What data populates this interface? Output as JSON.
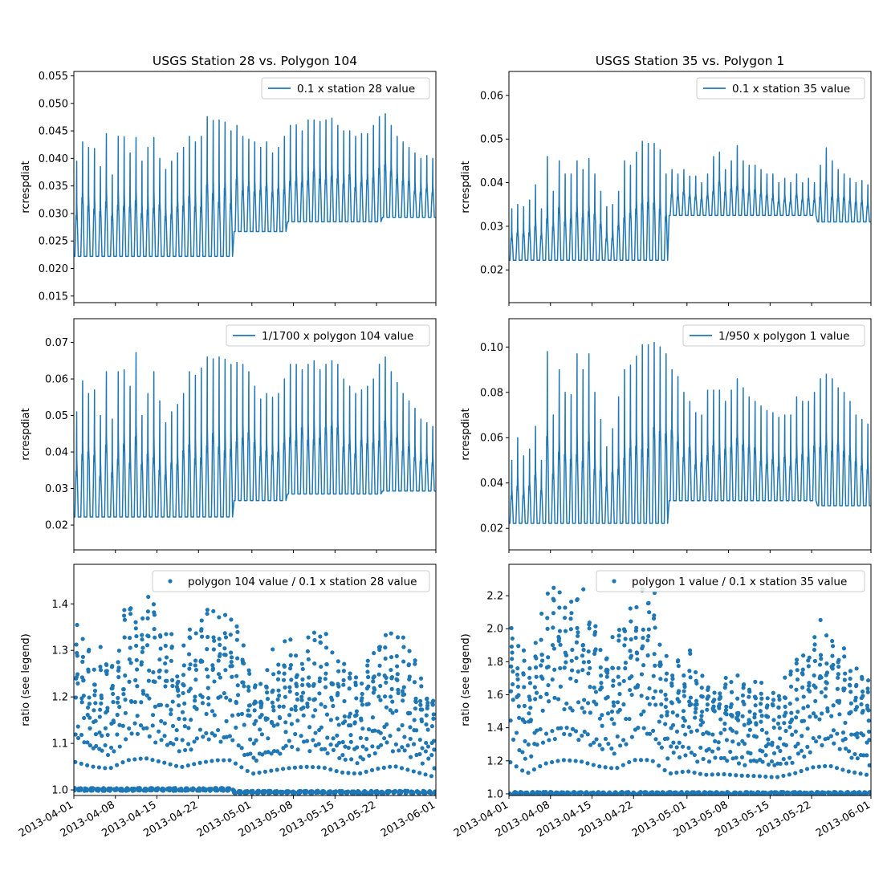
{
  "chart_data": [
    {
      "type": "line",
      "panel": "top-left",
      "title": "USGS Station 28 vs. Polygon 104",
      "ylabel": "rcrespdiat",
      "xlim": [
        "2013-04-01",
        "2013-06-01"
      ],
      "ylim": [
        0.0138,
        0.0558
      ],
      "yticks": [
        0.015,
        0.02,
        0.025,
        0.03,
        0.035,
        0.04,
        0.045,
        0.05,
        0.055
      ],
      "ytick_labels": [
        "0.015",
        "0.020",
        "0.025",
        "0.030",
        "0.035",
        "0.040",
        "0.045",
        "0.050",
        "0.055"
      ],
      "legend": {
        "placement": "top-right",
        "entries": [
          "0.1 x station 28 value"
        ]
      },
      "color": "#1f77b4",
      "daily_cycle": true,
      "segments": [
        {
          "from": "2013-04-01",
          "to": "2013-04-28",
          "base": 0.0222
        },
        {
          "from": "2013-04-28",
          "to": "2013-05-07",
          "base": 0.0267
        },
        {
          "from": "2013-05-07",
          "to": "2013-05-23",
          "base": 0.0285
        },
        {
          "from": "2013-05-23",
          "to": "2013-06-01",
          "base": 0.0293
        }
      ],
      "daily_peaks": [
        0.0395,
        0.043,
        0.042,
        0.0418,
        0.0385,
        0.0445,
        0.037,
        0.044,
        0.0439,
        0.041,
        0.0438,
        0.0395,
        0.042,
        0.0438,
        0.04,
        0.038,
        0.0395,
        0.041,
        0.042,
        0.044,
        0.043,
        0.044,
        0.0476,
        0.0469,
        0.047,
        0.0466,
        0.045,
        0.046,
        0.044,
        0.0435,
        0.043,
        0.042,
        0.043,
        0.041,
        0.042,
        0.044,
        0.046,
        0.0461,
        0.045,
        0.047,
        0.047,
        0.0467,
        0.047,
        0.0473,
        0.046,
        0.045,
        0.045,
        0.044,
        0.0445,
        0.0445,
        0.046,
        0.0476,
        0.0481,
        0.046,
        0.044,
        0.043,
        0.042,
        0.041,
        0.04,
        0.0405,
        0.04
      ]
    },
    {
      "type": "line",
      "panel": "top-right",
      "title": "USGS Station 35 vs. Polygon 1",
      "ylabel": "rcrespdiat",
      "xlim": [
        "2013-04-01",
        "2013-06-01"
      ],
      "ylim": [
        0.0125,
        0.0655
      ],
      "yticks": [
        0.02,
        0.03,
        0.04,
        0.05,
        0.06
      ],
      "ytick_labels": [
        "0.02",
        "0.03",
        "0.04",
        "0.05",
        "0.06"
      ],
      "legend": {
        "placement": "top-right",
        "entries": [
          "0.1 x station 35 value"
        ]
      },
      "color": "#1f77b4",
      "daily_cycle": true,
      "segments": [
        {
          "from": "2013-04-01",
          "to": "2013-04-28",
          "base": 0.0222
        },
        {
          "from": "2013-04-28",
          "to": "2013-05-15",
          "base": 0.0325
        },
        {
          "from": "2013-05-15",
          "to": "2013-05-23",
          "base": 0.0325
        },
        {
          "from": "2013-05-23",
          "to": "2013-06-01",
          "base": 0.031
        }
      ],
      "daily_peaks": [
        0.034,
        0.035,
        0.0345,
        0.036,
        0.0395,
        0.034,
        0.046,
        0.038,
        0.045,
        0.042,
        0.042,
        0.045,
        0.043,
        0.0455,
        0.042,
        0.038,
        0.0345,
        0.035,
        0.038,
        0.045,
        0.044,
        0.047,
        0.0495,
        0.049,
        0.049,
        0.0475,
        0.042,
        0.043,
        0.042,
        0.043,
        0.0415,
        0.0415,
        0.04,
        0.042,
        0.046,
        0.047,
        0.043,
        0.045,
        0.0485,
        0.045,
        0.044,
        0.044,
        0.043,
        0.042,
        0.042,
        0.04,
        0.041,
        0.04,
        0.042,
        0.04,
        0.041,
        0.04,
        0.044,
        0.048,
        0.045,
        0.043,
        0.042,
        0.041,
        0.04,
        0.0405,
        0.0395
      ]
    },
    {
      "type": "line",
      "panel": "middle-left",
      "ylabel": "rcrespdiat",
      "xlim": [
        "2013-04-01",
        "2013-06-01"
      ],
      "ylim": [
        0.0132,
        0.0765
      ],
      "yticks": [
        0.02,
        0.03,
        0.04,
        0.05,
        0.06,
        0.07
      ],
      "ytick_labels": [
        "0.02",
        "0.03",
        "0.04",
        "0.05",
        "0.06",
        "0.07"
      ],
      "legend": {
        "placement": "top-right",
        "entries": [
          "1/1700 x polygon 104 value"
        ]
      },
      "color": "#1f77b4",
      "daily_cycle": true,
      "segments": [
        {
          "from": "2013-04-01",
          "to": "2013-04-28",
          "base": 0.0222
        },
        {
          "from": "2013-04-28",
          "to": "2013-05-07",
          "base": 0.0267
        },
        {
          "from": "2013-05-07",
          "to": "2013-05-23",
          "base": 0.0285
        },
        {
          "from": "2013-05-23",
          "to": "2013-06-01",
          "base": 0.0293
        }
      ],
      "daily_peaks": [
        0.051,
        0.0595,
        0.056,
        0.057,
        0.05,
        0.062,
        0.049,
        0.062,
        0.0625,
        0.058,
        0.0672,
        0.05,
        0.056,
        0.062,
        0.054,
        0.048,
        0.051,
        0.053,
        0.056,
        0.062,
        0.061,
        0.063,
        0.066,
        0.0655,
        0.066,
        0.0654,
        0.064,
        0.0645,
        0.064,
        0.062,
        0.058,
        0.0545,
        0.056,
        0.055,
        0.056,
        0.06,
        0.064,
        0.064,
        0.0625,
        0.064,
        0.065,
        0.0625,
        0.064,
        0.065,
        0.064,
        0.06,
        0.058,
        0.056,
        0.057,
        0.058,
        0.06,
        0.064,
        0.066,
        0.062,
        0.059,
        0.056,
        0.054,
        0.052,
        0.049,
        0.048,
        0.047
      ]
    },
    {
      "type": "line",
      "panel": "middle-right",
      "ylabel": "rcrespdiat",
      "xlim": [
        "2013-04-01",
        "2013-06-01"
      ],
      "ylim": [
        0.0105,
        0.1125
      ],
      "yticks": [
        0.02,
        0.04,
        0.06,
        0.08,
        0.1
      ],
      "ytick_labels": [
        "0.02",
        "0.04",
        "0.06",
        "0.08",
        "0.10"
      ],
      "legend": {
        "placement": "top-right",
        "entries": [
          "1/950 x polygon 1 value"
        ]
      },
      "color": "#1f77b4",
      "daily_cycle": true,
      "segments": [
        {
          "from": "2013-04-01",
          "to": "2013-04-28",
          "base": 0.0222
        },
        {
          "from": "2013-04-28",
          "to": "2013-05-15",
          "base": 0.0322
        },
        {
          "from": "2013-05-15",
          "to": "2013-05-23",
          "base": 0.0322
        },
        {
          "from": "2013-05-23",
          "to": "2013-06-01",
          "base": 0.03
        }
      ],
      "daily_peaks": [
        0.05,
        0.06,
        0.052,
        0.055,
        0.065,
        0.05,
        0.098,
        0.07,
        0.09,
        0.08,
        0.079,
        0.097,
        0.09,
        0.097,
        0.08,
        0.068,
        0.056,
        0.064,
        0.078,
        0.09,
        0.092,
        0.096,
        0.101,
        0.101,
        0.102,
        0.1,
        0.097,
        0.09,
        0.087,
        0.08,
        0.076,
        0.071,
        0.07,
        0.081,
        0.081,
        0.081,
        0.076,
        0.081,
        0.086,
        0.082,
        0.078,
        0.076,
        0.074,
        0.072,
        0.071,
        0.069,
        0.07,
        0.07,
        0.078,
        0.076,
        0.076,
        0.08,
        0.086,
        0.088,
        0.086,
        0.082,
        0.08,
        0.076,
        0.07,
        0.068,
        0.066
      ]
    },
    {
      "type": "scatter",
      "panel": "bottom-left",
      "ylabel": "ratio (see legend)",
      "xlim": [
        "2013-04-01",
        "2013-06-01"
      ],
      "ylim": [
        0.988,
        1.485
      ],
      "yticks": [
        1.0,
        1.1,
        1.2,
        1.3,
        1.4
      ],
      "ytick_labels": [
        "1.0",
        "1.1",
        "1.2",
        "1.3",
        "1.4"
      ],
      "xtick_labels": [
        "2013-04-01",
        "2013-04-08",
        "2013-04-15",
        "2013-04-22",
        "2013-05-01",
        "2013-05-08",
        "2013-05-15",
        "2013-05-22",
        "2013-06-01"
      ],
      "legend": {
        "placement": "top-right",
        "entries": [
          "polygon 104 value / 0.1 x station 28 value"
        ]
      },
      "color": "#1f77b4",
      "baseline": [
        {
          "from": "2013-04-01",
          "to": "2013-04-28",
          "y": 1.001
        },
        {
          "from": "2013-04-28",
          "to": "2013-06-01",
          "y": 0.995
        }
      ],
      "envelope_days": [
        0,
        3,
        6,
        9,
        12,
        15,
        18,
        21,
        24,
        27,
        30,
        33,
        36,
        39,
        42,
        45,
        48,
        51,
        54,
        57,
        61
      ],
      "envelope_max": [
        1.4,
        1.33,
        1.3,
        1.42,
        1.45,
        1.39,
        1.32,
        1.38,
        1.42,
        1.42,
        1.26,
        1.3,
        1.34,
        1.36,
        1.35,
        1.28,
        1.26,
        1.33,
        1.37,
        1.3,
        1.21
      ]
    },
    {
      "type": "scatter",
      "panel": "bottom-right",
      "ylabel": "ratio (see legend)",
      "xlim": [
        "2013-04-01",
        "2013-06-01"
      ],
      "ylim": [
        0.99,
        2.39
      ],
      "yticks": [
        1.0,
        1.2,
        1.4,
        1.6,
        1.8,
        2.0,
        2.2
      ],
      "ytick_labels": [
        "1.0",
        "1.2",
        "1.4",
        "1.6",
        "1.8",
        "2.0",
        "2.2"
      ],
      "xtick_labels": [
        "2013-04-01",
        "2013-04-08",
        "2013-04-15",
        "2013-04-22",
        "2013-05-01",
        "2013-05-08",
        "2013-05-15",
        "2013-05-22",
        "2013-06-01"
      ],
      "legend": {
        "placement": "top-right",
        "entries": [
          "polygon 1 value / 0.1 x station 35 value"
        ]
      },
      "color": "#1f77b4",
      "baseline": [
        {
          "from": "2013-04-01",
          "to": "2013-06-01",
          "y": 1.003
        }
      ],
      "envelope_days": [
        0,
        3,
        6,
        9,
        12,
        15,
        18,
        21,
        24,
        27,
        30,
        33,
        36,
        39,
        42,
        45,
        48,
        51,
        54,
        57,
        61
      ],
      "envelope_max": [
        2.3,
        1.8,
        2.2,
        2.35,
        2.3,
        2.1,
        2.0,
        2.35,
        2.35,
        1.8,
        1.9,
        1.75,
        1.78,
        1.72,
        1.7,
        1.65,
        1.8,
        2.05,
        2.12,
        1.9,
        1.72
      ]
    }
  ]
}
